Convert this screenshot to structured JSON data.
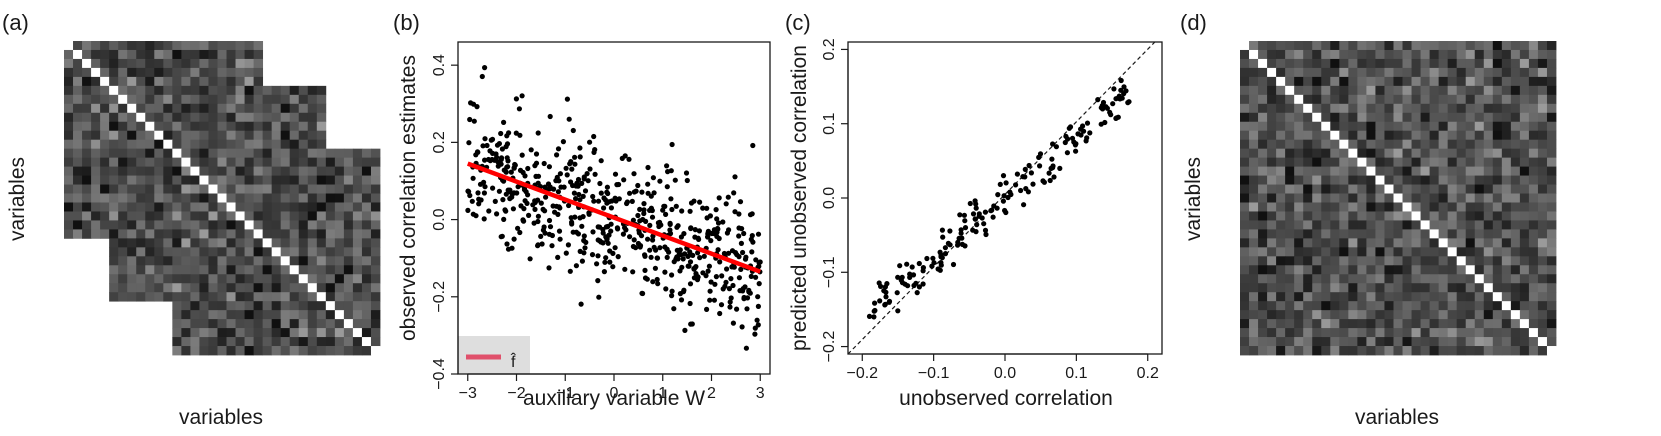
{
  "panels": {
    "a": {
      "label": "(a)",
      "xlabel": "variables",
      "ylabel": "variables"
    },
    "b": {
      "label": "(b)"
    },
    "c": {
      "label": "(c)"
    },
    "d": {
      "label": "(d)",
      "xlabel": "variables",
      "ylabel": "variables"
    }
  },
  "chart_data": [
    {
      "panel": "a",
      "type": "heatmap",
      "description_of_structure": "incomplete correlation matrix: three overlapping diagonal blocks observed, white diagonal",
      "size": 35,
      "observed_blocks": [
        [
          0,
          22
        ],
        [
          5,
          29
        ],
        [
          12,
          35
        ]
      ],
      "colormap": [
        "#101010",
        "#9a9a9a"
      ],
      "diagonal_color": "#ffffff",
      "xlabel": "variables",
      "ylabel": "variables"
    },
    {
      "panel": "b",
      "type": "scatter",
      "xlabel": "auxiliary variable W",
      "ylabel": "observed correlation estimates",
      "xlim": [
        -3.2,
        3.2
      ],
      "ylim": [
        -0.4,
        0.46
      ],
      "xticks": [
        -3,
        -2,
        -1,
        0,
        1,
        2,
        3
      ],
      "yticks": [
        -0.4,
        -0.2,
        0.0,
        0.2,
        0.4
      ],
      "xtick_labels": [
        "−3",
        "−2",
        "−1",
        "0",
        "1",
        "2",
        "3"
      ],
      "ytick_labels": [
        "−0.4",
        "−0.2",
        "0.0",
        "0.2",
        "0.4"
      ],
      "n_points": 620,
      "trend": {
        "slope": -0.0465,
        "intercept": 0.005,
        "noise_sd": 0.085
      },
      "fit_line": {
        "x": [
          -3,
          3
        ],
        "y": [
          0.145,
          -0.135
        ],
        "color": "#ff0000"
      },
      "legend": {
        "entries": [
          {
            "label": "f̂",
            "color": "#e0506b"
          }
        ],
        "placement": "bottom-left"
      },
      "grid": false
    },
    {
      "panel": "c",
      "type": "scatter",
      "xlabel": "unobserved correlation",
      "ylabel": "predicted unobserved correlation",
      "xlim": [
        -0.22,
        0.22
      ],
      "ylim": [
        -0.21,
        0.21
      ],
      "xticks": [
        -0.2,
        -0.1,
        0.0,
        0.1,
        0.2
      ],
      "yticks": [
        -0.2,
        -0.1,
        0.0,
        0.1,
        0.2
      ],
      "xtick_labels": [
        "−0.2",
        "−0.1",
        "0.0",
        "0.1",
        "0.2"
      ],
      "ytick_labels": [
        "−0.2",
        "−0.1",
        "0.0",
        "0.1",
        "0.2"
      ],
      "n_points": 180,
      "x_range_points": [
        -0.19,
        0.175
      ],
      "relation": {
        "slope": 0.8,
        "noise_sd": 0.016
      },
      "reference_line": {
        "x": [
          -0.22,
          0.22
        ],
        "y": [
          -0.22,
          0.22
        ],
        "style": "dashed"
      },
      "grid": false
    },
    {
      "panel": "d",
      "type": "heatmap",
      "description_of_structure": "completed full correlation matrix with white diagonal",
      "size": 35,
      "colormap": [
        "#101010",
        "#9a9a9a"
      ],
      "diagonal_color": "#ffffff",
      "xlabel": "variables",
      "ylabel": "variables"
    }
  ]
}
